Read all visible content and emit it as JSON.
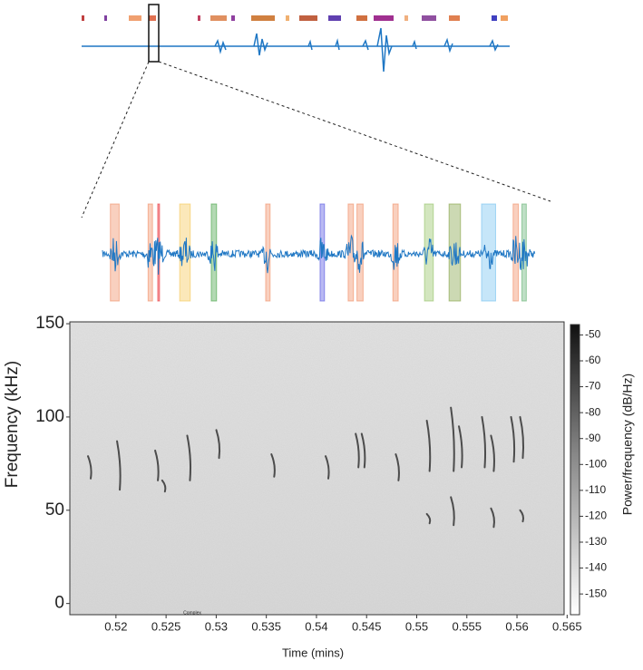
{
  "chart_data": {
    "type": "spectrogram",
    "xlabel": "Time (mins)",
    "ylabel": "Frequency (kHz)",
    "colorbar_label": "Power/frequency (dB/Hz)",
    "annotation": "Complex",
    "xlim": [
      0.5154,
      0.5647
    ],
    "xticks": [
      0.52,
      0.525,
      0.53,
      0.535,
      0.54,
      0.545,
      0.55,
      0.555,
      0.56,
      0.565
    ],
    "ylim": [
      -6,
      151
    ],
    "yticks": [
      0,
      50,
      100,
      150
    ],
    "clim": [
      -158,
      -46
    ],
    "cticks": [
      -50,
      -60,
      -70,
      -80,
      -90,
      -100,
      -110,
      -120,
      -130,
      -140,
      -150
    ],
    "waveform_color": "#1f77c4",
    "segments": [
      {
        "start": 0.5163,
        "end": 0.5173,
        "color": "#f08a60"
      },
      {
        "start": 0.5206,
        "end": 0.5211,
        "color": "#f08a60"
      },
      {
        "start": 0.5217,
        "end": 0.5219,
        "color": "#e8242c"
      },
      {
        "start": 0.5242,
        "end": 0.5254,
        "color": "#f5c550"
      },
      {
        "start": 0.5278,
        "end": 0.5284,
        "color": "#40a040"
      },
      {
        "start": 0.534,
        "end": 0.5345,
        "color": "#f08a60"
      },
      {
        "start": 0.5402,
        "end": 0.5407,
        "color": "#5050e0"
      },
      {
        "start": 0.5434,
        "end": 0.544,
        "color": "#f08a60"
      },
      {
        "start": 0.5444,
        "end": 0.5451,
        "color": "#f08a60"
      },
      {
        "start": 0.5485,
        "end": 0.5491,
        "color": "#f08a60"
      },
      {
        "start": 0.5521,
        "end": 0.5531,
        "color": "#90c060"
      },
      {
        "start": 0.5549,
        "end": 0.5562,
        "color": "#80a040"
      },
      {
        "start": 0.5586,
        "end": 0.5602,
        "color": "#70c0f0"
      },
      {
        "start": 0.5622,
        "end": 0.5628,
        "color": "#f08a60"
      },
      {
        "start": 0.5632,
        "end": 0.5637,
        "color": "#60b070"
      }
    ],
    "calls": [
      {
        "time": 0.5173,
        "f_start": 79,
        "f_end": 67
      },
      {
        "time": 0.5202,
        "f_start": 87,
        "f_end": 61
      },
      {
        "time": 0.524,
        "f_start": 82,
        "f_end": 66
      },
      {
        "time": 0.5247,
        "f_start": 66,
        "f_end": 60
      },
      {
        "time": 0.5272,
        "f_start": 90,
        "f_end": 66
      },
      {
        "time": 0.5301,
        "f_start": 93,
        "f_end": 78
      },
      {
        "time": 0.5356,
        "f_start": 80,
        "f_end": 68
      },
      {
        "time": 0.541,
        "f_start": 79,
        "f_end": 67
      },
      {
        "time": 0.544,
        "f_start": 91,
        "f_end": 73
      },
      {
        "time": 0.5446,
        "f_start": 91,
        "f_end": 73
      },
      {
        "time": 0.548,
        "f_start": 80,
        "f_end": 66
      },
      {
        "time": 0.5511,
        "f_start": 98,
        "f_end": 71
      },
      {
        "time": 0.5511,
        "f_start": 48,
        "f_end": 43
      },
      {
        "time": 0.5535,
        "f_start": 105,
        "f_end": 71
      },
      {
        "time": 0.5535,
        "f_start": 57,
        "f_end": 42
      },
      {
        "time": 0.5543,
        "f_start": 95,
        "f_end": 73
      },
      {
        "time": 0.5566,
        "f_start": 100,
        "f_end": 73
      },
      {
        "time": 0.5575,
        "f_start": 90,
        "f_end": 71
      },
      {
        "time": 0.5575,
        "f_start": 51,
        "f_end": 41
      },
      {
        "time": 0.5595,
        "f_start": 100,
        "f_end": 76
      },
      {
        "time": 0.5604,
        "f_start": 100,
        "f_end": 78
      },
      {
        "time": 0.5604,
        "f_start": 50,
        "f_end": 44
      }
    ]
  }
}
